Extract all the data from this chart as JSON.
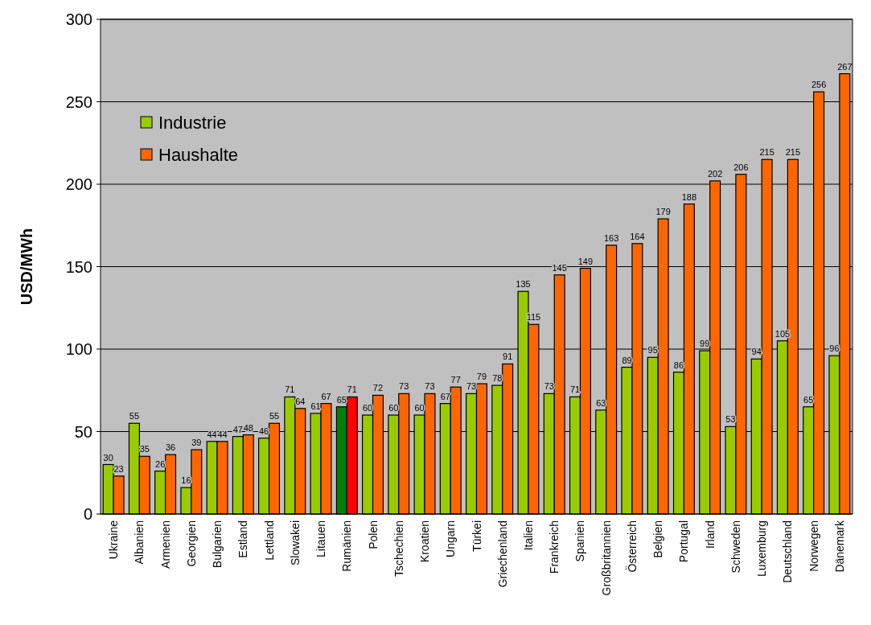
{
  "chart_data": {
    "type": "bar",
    "ylabel": "USD/MWh",
    "categories": [
      "Ukraine",
      "Albanien",
      "Armenien",
      "Georgien",
      "Bulgarien",
      "Estland",
      "Lettland",
      "Slowakei",
      "Litauen",
      "Rumänien",
      "Polen",
      "Tschechien",
      "Kroatien",
      "Ungarn",
      "Türkei",
      "Griechenland",
      "Italien",
      "Frankreich",
      "Spanien",
      "Großbritannien",
      "Österreich",
      "Belgien",
      "Portugal",
      "Irland",
      "Schweden",
      "Luxemburg",
      "Deutschland",
      "Norwegen",
      "Dänemark"
    ],
    "series": [
      {
        "name": "Industrie",
        "color": "#99cc00",
        "colors": [
          "#99cc00",
          "#99cc00",
          "#99cc00",
          "#99cc00",
          "#99cc00",
          "#99cc00",
          "#99cc00",
          "#99cc00",
          "#99cc00",
          "#008000",
          "#99cc00",
          "#99cc00",
          "#99cc00",
          "#99cc00",
          "#99cc00",
          "#99cc00",
          "#99cc00",
          "#99cc00",
          "#99cc00",
          "#99cc00",
          "#99cc00",
          "#99cc00",
          "#99cc00",
          "#99cc00",
          "#99cc00",
          "#99cc00",
          "#99cc00",
          "#99cc00",
          "#99cc00"
        ],
        "values": [
          30,
          55,
          26,
          16,
          44,
          47,
          46,
          71,
          61,
          65,
          60,
          60,
          60,
          67,
          73,
          78,
          135,
          73,
          71,
          63,
          89,
          95,
          86,
          99,
          53,
          94,
          105,
          65,
          96
        ]
      },
      {
        "name": "Haushalte",
        "color": "#ff6600",
        "colors": [
          "#ff6600",
          "#ff6600",
          "#ff6600",
          "#ff6600",
          "#ff6600",
          "#ff6600",
          "#ff6600",
          "#ff6600",
          "#ff6600",
          "#ff0000",
          "#ff6600",
          "#ff6600",
          "#ff6600",
          "#ff6600",
          "#ff6600",
          "#ff6600",
          "#ff6600",
          "#ff6600",
          "#ff6600",
          "#ff6600",
          "#ff6600",
          "#ff6600",
          "#ff6600",
          "#ff6600",
          "#ff6600",
          "#ff6600",
          "#ff6600",
          "#ff6600",
          "#ff6600"
        ],
        "values": [
          23,
          35,
          36,
          39,
          44,
          48,
          55,
          64,
          67,
          71,
          72,
          73,
          73,
          77,
          79,
          91,
          115,
          145,
          149,
          163,
          164,
          179,
          188,
          202,
          206,
          215,
          215,
          256,
          267
        ]
      }
    ],
    "ylim": [
      0,
      300
    ],
    "yticks": [
      0,
      50,
      100,
      150,
      200,
      250,
      300
    ],
    "grid": "y",
    "legend": "top left",
    "data_labels": true
  }
}
